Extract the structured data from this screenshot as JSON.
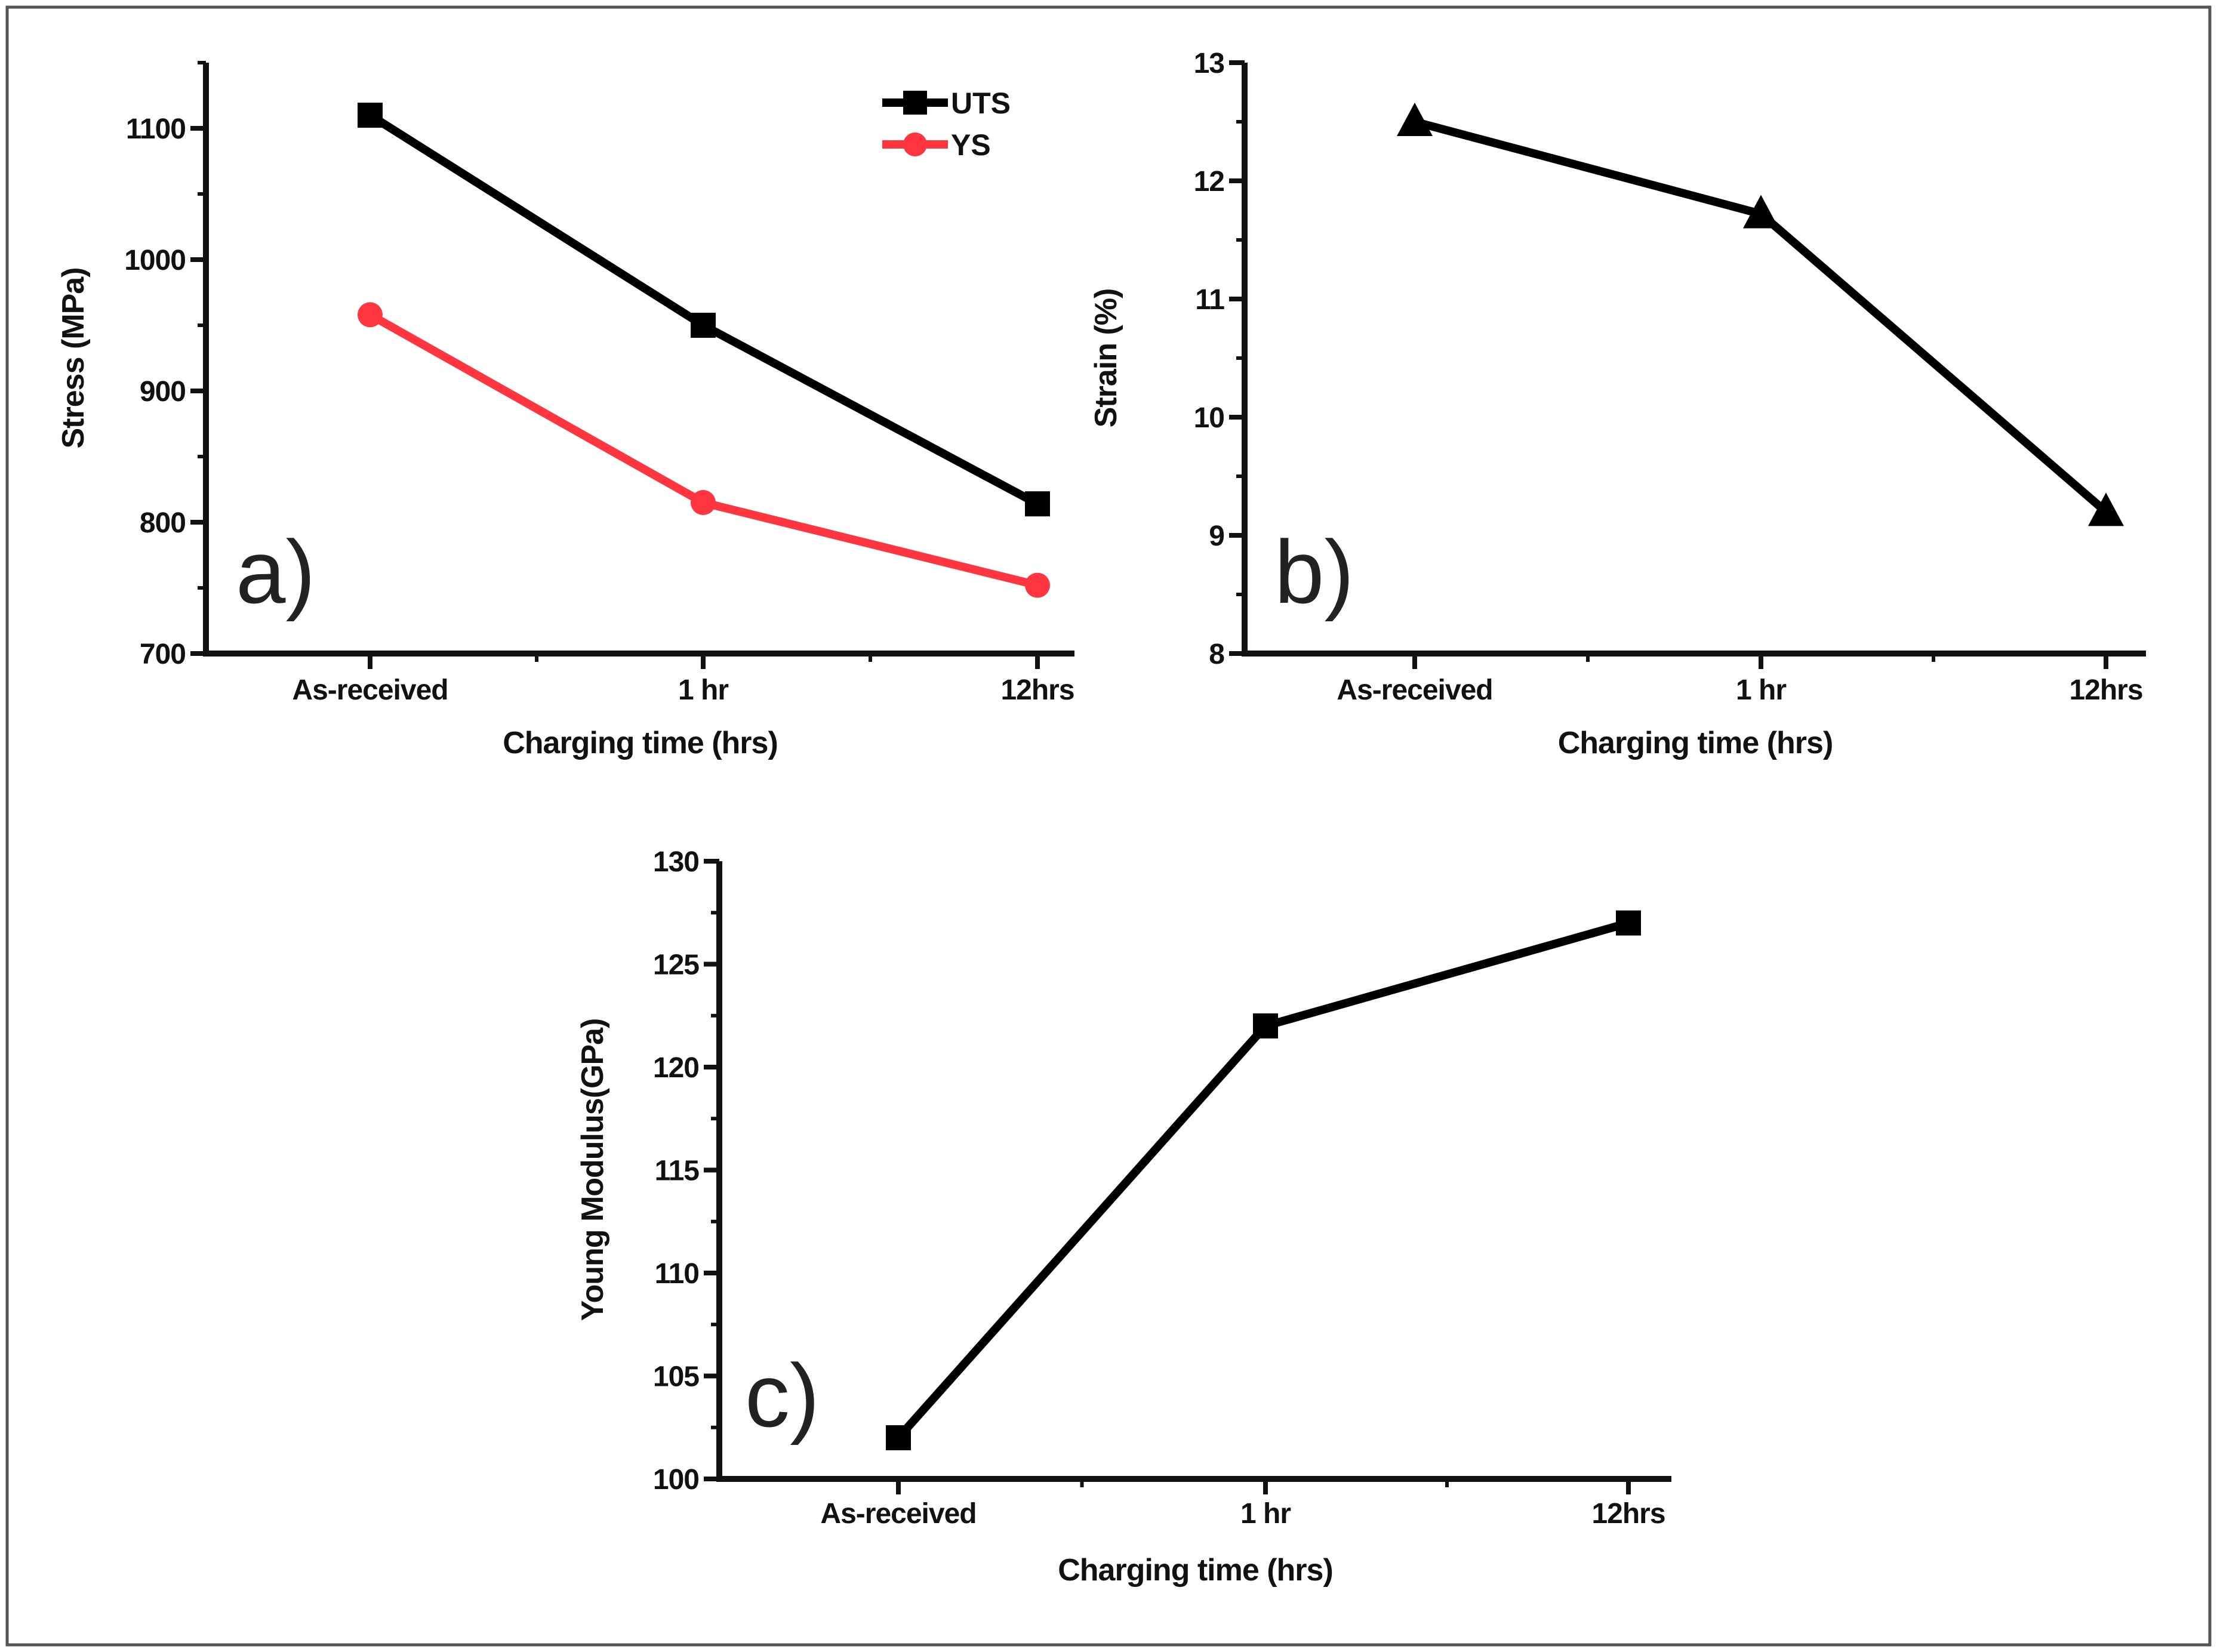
{
  "chart_data": [
    {
      "panel": "a)",
      "type": "line",
      "categories": [
        "As-received",
        "1 hr",
        "12hrs"
      ],
      "series": [
        {
          "name": "UTS",
          "values": [
            1110,
            950,
            814
          ],
          "color": "#000000",
          "marker": "square"
        },
        {
          "name": "YS",
          "values": [
            958,
            815,
            752
          ],
          "color": "#ff3540",
          "marker": "circle"
        }
      ],
      "xlabel": "Charging time (hrs)",
      "ylabel": "Stress (MPa)",
      "ylim": [
        700,
        1150
      ],
      "yticks": [
        700,
        800,
        900,
        1000,
        1100
      ],
      "legend": "top-right",
      "grid": false
    },
    {
      "panel": "b)",
      "type": "line",
      "categories": [
        "As-received",
        "1 hr",
        "12hrs"
      ],
      "series": [
        {
          "name": "Strain",
          "values": [
            12.5,
            11.72,
            9.2
          ],
          "color": "#000000",
          "marker": "triangle"
        }
      ],
      "xlabel": "Charging time (hrs)",
      "ylabel": "Strain (%)",
      "ylim": [
        8,
        13
      ],
      "yticks": [
        8,
        9,
        10,
        11,
        12,
        13
      ],
      "grid": false
    },
    {
      "panel": "c)",
      "type": "line",
      "categories": [
        "As-received",
        "1 hr",
        "12hrs"
      ],
      "series": [
        {
          "name": "Young Modulus",
          "values": [
            102,
            122,
            127
          ],
          "color": "#000000",
          "marker": "square"
        }
      ],
      "xlabel": "Charging time (hrs)",
      "ylabel": "Young Modulus(GPa)",
      "ylim": [
        100,
        130
      ],
      "yticks": [
        100,
        105,
        110,
        115,
        120,
        125,
        130
      ],
      "grid": false
    }
  ]
}
